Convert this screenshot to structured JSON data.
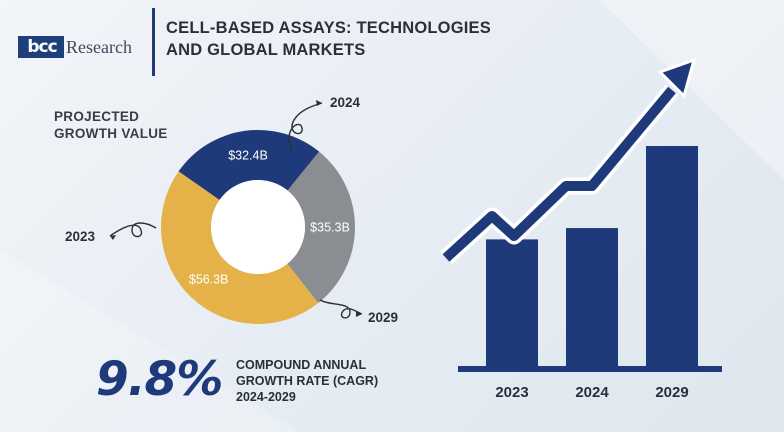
{
  "logo": {
    "part1": "bcc",
    "part2": "Research"
  },
  "title": {
    "line1": "CELL-BASED ASSAYS: TECHNOLOGIES",
    "line2": "AND GLOBAL MARKETS"
  },
  "donut_label": {
    "line1": "PROJECTED",
    "line2": "GROWTH VALUE"
  },
  "cagr": {
    "value": "9.8%",
    "line1": "COMPOUND ANNUAL",
    "line2": "GROWTH RATE (CAGR)",
    "line3": "2024-2029"
  },
  "colors": {
    "navy": "#1f3a7a",
    "gray": "#8a8d91",
    "gold": "#e5b24a"
  },
  "chart_data": [
    {
      "type": "pie",
      "categories": [
        "2023",
        "2024",
        "2029"
      ],
      "values": [
        32.4,
        35.3,
        56.3
      ],
      "data_labels": [
        "$32.4B",
        "$35.3B",
        "$56.3B"
      ],
      "donut": true
    },
    {
      "type": "bar",
      "categories": [
        "2023",
        "2024",
        "2029"
      ],
      "values": [
        32.4,
        35.3,
        56.3
      ],
      "ylim": [
        0,
        60
      ],
      "trend_arrow": true
    }
  ]
}
